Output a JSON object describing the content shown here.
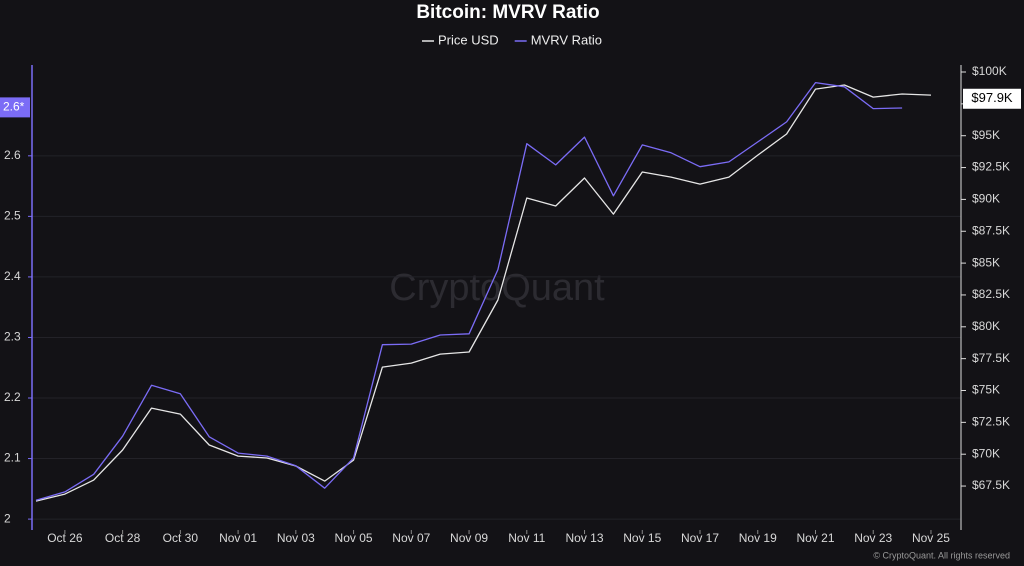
{
  "chart_data": {
    "type": "line",
    "title": "Bitcoin: MVRV Ratio",
    "watermark": "CryptoQuant",
    "footer": "© CryptoQuant. All rights reserved",
    "categories": [
      null,
      "Oct 26",
      null,
      "Oct 28",
      null,
      "Oct 30",
      null,
      "Nov 01",
      null,
      "Nov 03",
      null,
      "Nov 05",
      null,
      "Nov 07",
      null,
      "Nov 09",
      null,
      "Nov 11",
      null,
      "Nov 13",
      null,
      "Nov 15",
      null,
      "Nov 17",
      null,
      "Nov 19",
      null,
      "Nov 21",
      null,
      "Nov 23",
      null,
      "Nov 25"
    ],
    "series": [
      {
        "name": "Price USD",
        "color": "#e6e6e6",
        "axis": "y2",
        "values": [
          66320,
          66870,
          67970,
          70330,
          73620,
          73150,
          70720,
          69850,
          69700,
          69070,
          67890,
          69540,
          76840,
          77150,
          77860,
          78020,
          82100,
          90110,
          89480,
          91680,
          88850,
          92150,
          91750,
          91200,
          91750,
          93480,
          95130,
          98660,
          98980,
          98030,
          98270,
          98190
        ]
      },
      {
        "name": "MVRV Ratio",
        "color": "#7b6cf6",
        "axis": "y",
        "values": [
          2.031,
          2.045,
          2.074,
          2.137,
          2.221,
          2.207,
          2.136,
          2.109,
          2.104,
          2.088,
          2.051,
          2.101,
          2.288,
          2.289,
          2.304,
          2.306,
          2.412,
          2.62,
          2.585,
          2.631,
          2.534,
          2.618,
          2.605,
          2.582,
          2.59,
          2.623,
          2.656,
          2.721,
          2.714,
          2.678,
          2.679,
          null
        ]
      }
    ],
    "ylim": [
      1.982,
      2.75
    ],
    "yticks": [
      2,
      2.1,
      2.2,
      2.3,
      2.4,
      2.5,
      2.6
    ],
    "y2lim": [
      64050,
      100550
    ],
    "y2ticks": [
      {
        "value": 67500,
        "label": "$67.5K"
      },
      {
        "value": 70000,
        "label": "$70K"
      },
      {
        "value": 72500,
        "label": "$72.5K"
      },
      {
        "value": 75000,
        "label": "$75K"
      },
      {
        "value": 77500,
        "label": "$77.5K"
      },
      {
        "value": 80000,
        "label": "$80K"
      },
      {
        "value": 82500,
        "label": "$82.5K"
      },
      {
        "value": 85000,
        "label": "$85K"
      },
      {
        "value": 87500,
        "label": "$87.5K"
      },
      {
        "value": 90000,
        "label": "$90K"
      },
      {
        "value": 92500,
        "label": "$92.5K"
      },
      {
        "value": 95000,
        "label": "$95K"
      },
      {
        "value": 97500,
        "label": "$97.5K"
      },
      {
        "value": 100000,
        "label": "$100K"
      }
    ],
    "current_values": [
      {
        "value": 2.68,
        "label": "2.6*",
        "axis": "y",
        "color": "#7b6cf6"
      },
      {
        "value": 97900,
        "label": "$97.9K",
        "axis": "y2",
        "color": "#ffffff"
      }
    ],
    "grid": true
  }
}
